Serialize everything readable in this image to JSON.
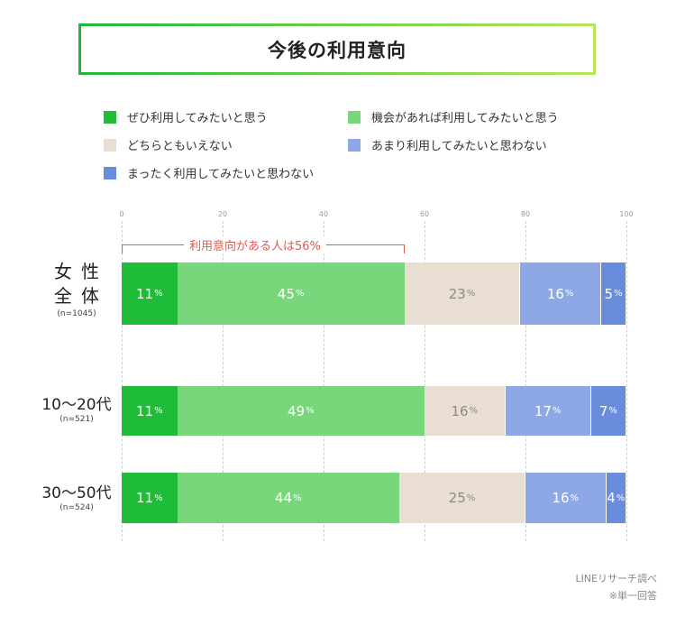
{
  "title": "今後の利用意向",
  "legend": [
    {
      "label": "ぜひ利用してみたいと思う",
      "color": "#1ebc37"
    },
    {
      "label": "機会があれば利用してみたいと思う",
      "color": "#78d67b"
    },
    {
      "label": "どちらともいえない",
      "color": "#eaded2"
    },
    {
      "label": "あまり利用してみたいと思わない",
      "color": "#8ea8e6"
    },
    {
      "label": "まったく利用してみたいと思わない",
      "color": "#6a8cdc"
    }
  ],
  "annotation": "利用意向がある人は56%",
  "footer": {
    "source": "LINEリサーチ調べ",
    "note": "※単一回答"
  },
  "chart_data": {
    "type": "bar",
    "orientation": "horizontal",
    "stacked": true,
    "title": "今後の利用意向",
    "xlim": [
      0,
      100
    ],
    "xticks": [
      "0",
      "20",
      "40",
      "60",
      "80",
      "100"
    ],
    "pct_suffix": "%",
    "categories": [
      {
        "name": "女性全体",
        "display": [
          "女性",
          "全体"
        ],
        "sub": "(n=1045)"
      },
      {
        "name": "10〜20代",
        "display": [
          "10〜20代"
        ],
        "sub": "(n=521)"
      },
      {
        "name": "30〜50代",
        "display": [
          "30〜50代"
        ],
        "sub": "(n=524)"
      }
    ],
    "series": [
      {
        "name": "ぜひ利用してみたいと思う",
        "values": [
          11,
          11,
          11
        ],
        "labels": [
          "11",
          "11",
          "11"
        ]
      },
      {
        "name": "機会があれば利用してみたいと思う",
        "values": [
          45,
          49,
          44
        ],
        "labels": [
          "45",
          "49",
          "44"
        ]
      },
      {
        "name": "どちらともいえない",
        "values": [
          23,
          16,
          25
        ],
        "labels": [
          "23",
          "16",
          "25"
        ]
      },
      {
        "name": "あまり利用してみたいと思わない",
        "values": [
          16,
          17,
          16
        ],
        "labels": [
          "16",
          "17",
          "16"
        ]
      },
      {
        "name": "まったく利用してみたいと思わない",
        "values": [
          5,
          7,
          4
        ],
        "labels": [
          "5",
          "7",
          "4"
        ]
      }
    ]
  }
}
